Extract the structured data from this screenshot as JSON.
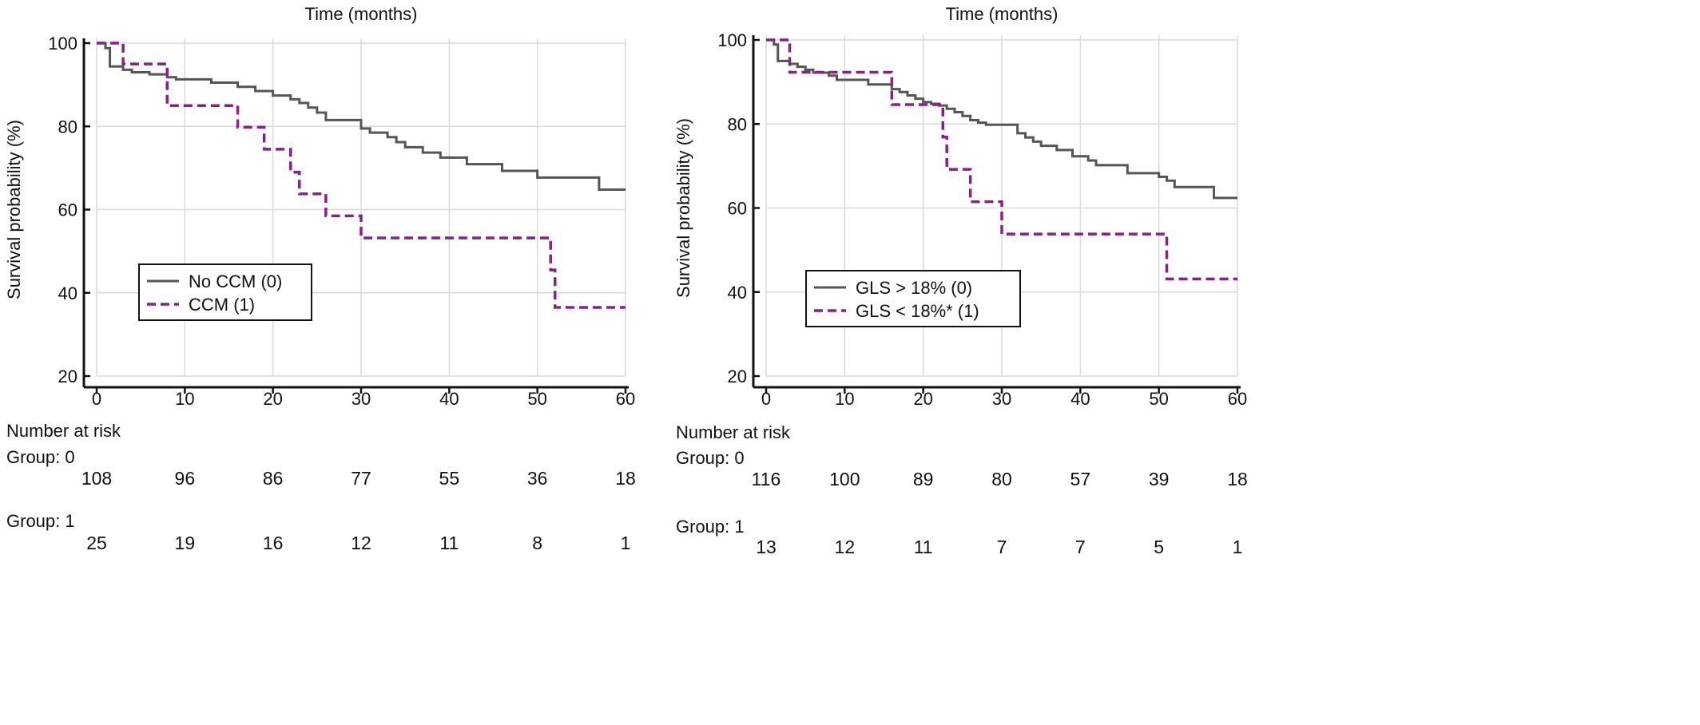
{
  "chart_data": [
    {
      "type": "line",
      "xlabel": "Time (months)",
      "ylabel": "Survival probability (%)",
      "xlim": [
        0,
        60
      ],
      "ylim": [
        20,
        100
      ],
      "x_ticks": [
        0,
        10,
        20,
        30,
        40,
        50,
        60
      ],
      "y_ticks": [
        20,
        40,
        60,
        80,
        100
      ],
      "grid": true,
      "legend_position": "center-left",
      "colors": {
        "group0": "#555555",
        "group1": "#8b1e8b"
      },
      "series": [
        {
          "name": "No CCM (0)",
          "style": "solid",
          "x": [
            0,
            1,
            1.5,
            3,
            4,
            6,
            8,
            9,
            13,
            16,
            18,
            20,
            22,
            23,
            24,
            25,
            26,
            30,
            31,
            33,
            34,
            35,
            37,
            39,
            42,
            46,
            50,
            57,
            60
          ],
          "y": [
            100,
            98.8,
            94.4,
            93.6,
            93,
            92.5,
            91.8,
            91.3,
            90.5,
            89.5,
            88.5,
            87.4,
            86.5,
            85.6,
            84.5,
            83.3,
            81.5,
            79.5,
            78.5,
            77.4,
            76.2,
            75,
            73.7,
            72.5,
            70.9,
            69.3,
            67.7,
            64.8,
            64.8
          ]
        },
        {
          "name": "CCM (1)",
          "style": "dashed",
          "x": [
            0,
            3,
            8,
            16,
            19,
            22,
            23,
            26,
            30,
            51,
            51.5,
            52,
            60
          ],
          "y": [
            100,
            95,
            85,
            79.8,
            74.5,
            69,
            63.8,
            58.5,
            53.2,
            53.2,
            45.5,
            36.5,
            36.5
          ]
        }
      ],
      "risk_table": {
        "title": "Number at risk",
        "rows": [
          {
            "label": "Group: 0",
            "values": [
              108,
              96,
              86,
              77,
              55,
              36,
              18
            ]
          },
          {
            "label": "Group: 1",
            "values": [
              25,
              19,
              16,
              12,
              11,
              8,
              1
            ]
          }
        ]
      }
    },
    {
      "type": "line",
      "xlabel": "Time (months)",
      "ylabel": "Survival probability (%)",
      "xlim": [
        0,
        60
      ],
      "ylim": [
        20,
        100
      ],
      "x_ticks": [
        0,
        10,
        20,
        30,
        40,
        50,
        60
      ],
      "y_ticks": [
        20,
        40,
        60,
        80,
        100
      ],
      "grid": true,
      "legend_position": "bottom-left",
      "colors": {
        "group0": "#555555",
        "group1": "#8b1e8b"
      },
      "series": [
        {
          "name": "GLS > 18% (0)",
          "style": "solid",
          "x": [
            0,
            1,
            1.5,
            3,
            4,
            5,
            6,
            8,
            9,
            13,
            16,
            17,
            18,
            19,
            20,
            21,
            22,
            23,
            24,
            25,
            26,
            27,
            28,
            30,
            32,
            33,
            34,
            35,
            37,
            39,
            41,
            42,
            46,
            50,
            51,
            52,
            57,
            60
          ],
          "y": [
            100,
            98.9,
            95,
            94.3,
            93.6,
            92.9,
            92.2,
            91.5,
            90.5,
            89.4,
            88.3,
            87.6,
            86.8,
            86,
            85.2,
            84.8,
            84.4,
            83.6,
            82.8,
            81.9,
            80.9,
            80.3,
            79.8,
            79.8,
            77.8,
            76.8,
            75.8,
            74.8,
            73.8,
            72.3,
            71.3,
            70.2,
            68.3,
            67.4,
            66.5,
            65,
            62.4,
            62.4
          ]
        },
        {
          "name": "GLS < 18%* (1)",
          "style": "dashed",
          "x": [
            0,
            3,
            16,
            22,
            22.5,
            23,
            26,
            30,
            51,
            60
          ],
          "y": [
            100,
            92.3,
            84.6,
            84.6,
            76.9,
            69.2,
            61.5,
            53.8,
            43.1,
            43.1
          ]
        }
      ],
      "risk_table": {
        "title": "Number at risk",
        "rows": [
          {
            "label": "Group: 0",
            "values": [
              116,
              100,
              89,
              80,
              57,
              39,
              18
            ]
          },
          {
            "label": "Group: 1",
            "values": [
              13,
              12,
              11,
              7,
              7,
              5,
              1
            ]
          }
        ]
      }
    }
  ]
}
